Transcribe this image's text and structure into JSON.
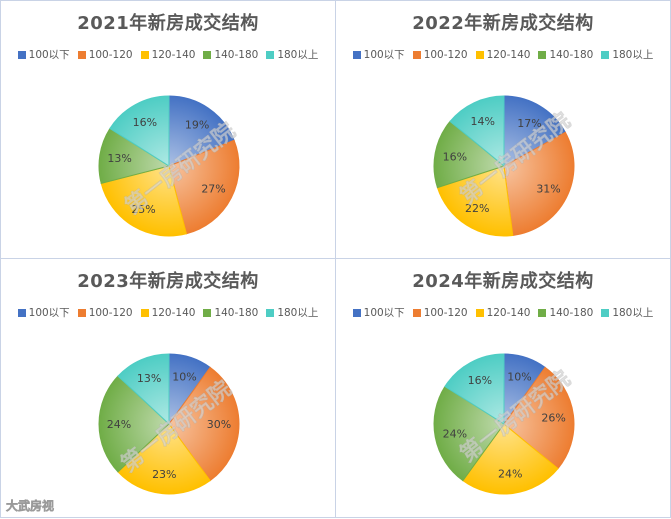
{
  "colors": {
    "100以下": "#4472c4",
    "100-120": "#ed7d31",
    "120-140": "#ffc000",
    "140-180": "#70ad47",
    "180以上": "#4ecdc4"
  },
  "watermark_text": "第一房研究院",
  "source_text": "大武房视",
  "chart_data": [
    {
      "type": "pie",
      "title": "2021年新房成交结构",
      "categories": [
        "100以下",
        "100-120",
        "120-140",
        "140-180",
        "180以上"
      ],
      "values": [
        19,
        27,
        25,
        13,
        16
      ],
      "value_labels": [
        "19%",
        "27%",
        "25%",
        "13%",
        "16%"
      ],
      "legend": "top"
    },
    {
      "type": "pie",
      "title": "2022年新房成交结构",
      "categories": [
        "100以下",
        "100-120",
        "120-140",
        "140-180",
        "180以上"
      ],
      "values": [
        17,
        31,
        22,
        16,
        14
      ],
      "value_labels": [
        "17%",
        "31%",
        "22%",
        "16%",
        "14%"
      ],
      "legend": "top"
    },
    {
      "type": "pie",
      "title": "2023年新房成交结构",
      "categories": [
        "100以下",
        "100-120",
        "120-140",
        "140-180",
        "180以上"
      ],
      "values": [
        10,
        30,
        23,
        24,
        13
      ],
      "value_labels": [
        "10%",
        "30%",
        "23%",
        "24%",
        "13%"
      ],
      "legend": "top"
    },
    {
      "type": "pie",
      "title": "2024年新房成交结构",
      "categories": [
        "100以下",
        "100-120",
        "120-140",
        "140-180",
        "180以上"
      ],
      "values": [
        10,
        26,
        24,
        24,
        16
      ],
      "value_labels": [
        "10%",
        "26%",
        "24%",
        "24%",
        "16%"
      ],
      "legend": "top"
    }
  ]
}
